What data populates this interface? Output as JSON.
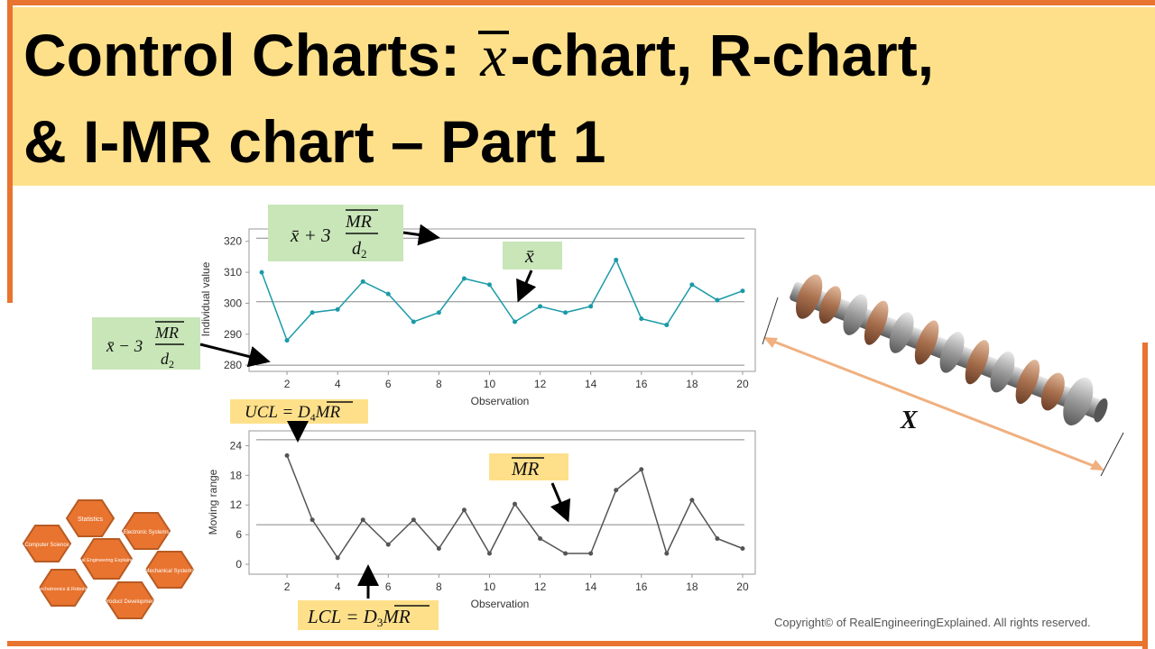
{
  "title": {
    "line1_prefix": "Control Charts: ",
    "line1_symbol": "x",
    "line1_suffix": "-chart, R-chart,",
    "line2": "& I-MR chart – Part 1"
  },
  "annotations": {
    "upper_limit": {
      "prefix": "x̄ + 3",
      "numerator": "MR",
      "denominator": "d",
      "denominator_sub": "2"
    },
    "center": "x̄",
    "lower_limit": {
      "prefix": "x̄ − 3",
      "numerator": "MR",
      "denominator": "d",
      "denominator_sub": "2"
    },
    "ucl": {
      "lhs": "UCL = D",
      "sub": "4",
      "rhs": "MR"
    },
    "mr_bar": "MR",
    "lcl": {
      "lhs": "LCL = D",
      "sub": "3",
      "rhs": "MR"
    }
  },
  "camshaft_label": "X",
  "logo": {
    "center": "Real Engineering Explained!",
    "items": [
      "Statistics",
      "Electronic Systems",
      "Computer Science",
      "Mechanical Systems",
      "Mechatronics & Robotics",
      "Product Development"
    ]
  },
  "copyright": "Copyright© of RealEngineeringExplained. All rights reserved.",
  "colors": {
    "title_band": "#ffe08a",
    "edge": "#e8742f",
    "individual_line": "#1a9aa8",
    "mr_line": "#555555",
    "annotation_green": "#c8e6b8",
    "annotation_yellow": "#ffe08a"
  },
  "chart_data": [
    {
      "type": "line",
      "title": "",
      "xlabel": "Observation",
      "ylabel": "Individual value",
      "xlim": [
        0.5,
        20.5
      ],
      "ylim": [
        278,
        324
      ],
      "x_ticks": [
        2,
        4,
        6,
        8,
        10,
        12,
        14,
        16,
        18,
        20
      ],
      "y_ticks": [
        280,
        290,
        300,
        310,
        320
      ],
      "x": [
        1,
        2,
        3,
        4,
        5,
        6,
        7,
        8,
        9,
        10,
        11,
        12,
        13,
        14,
        15,
        16,
        17,
        18,
        19,
        20
      ],
      "series": [
        {
          "values": [
            310,
            288,
            297,
            298,
            307,
            303,
            294,
            297,
            308,
            306,
            294,
            299,
            297,
            299,
            314,
            295,
            293,
            306,
            301,
            304
          ]
        }
      ],
      "reference_lines": [
        321,
        300.5,
        280
      ],
      "grid": false
    },
    {
      "type": "line",
      "title": "",
      "xlabel": "Observation",
      "ylabel": "Moving range",
      "xlim": [
        0.5,
        20.5
      ],
      "ylim": [
        -2,
        27
      ],
      "x_ticks": [
        2,
        4,
        6,
        8,
        10,
        12,
        14,
        16,
        18,
        20
      ],
      "y_ticks": [
        0,
        6,
        12,
        18,
        24
      ],
      "x": [
        2,
        3,
        4,
        5,
        6,
        7,
        8,
        9,
        10,
        11,
        12,
        13,
        14,
        15,
        16,
        17,
        18,
        19,
        20
      ],
      "series": [
        {
          "values": [
            22,
            9,
            1.3,
            9,
            4,
            9,
            3.2,
            11,
            2.2,
            12.2,
            5.2,
            2.2,
            2.2,
            15,
            19.2,
            2.2,
            13,
            5.2,
            3.2
          ]
        }
      ],
      "reference_lines": [
        25.2,
        8
      ],
      "grid": false
    }
  ]
}
